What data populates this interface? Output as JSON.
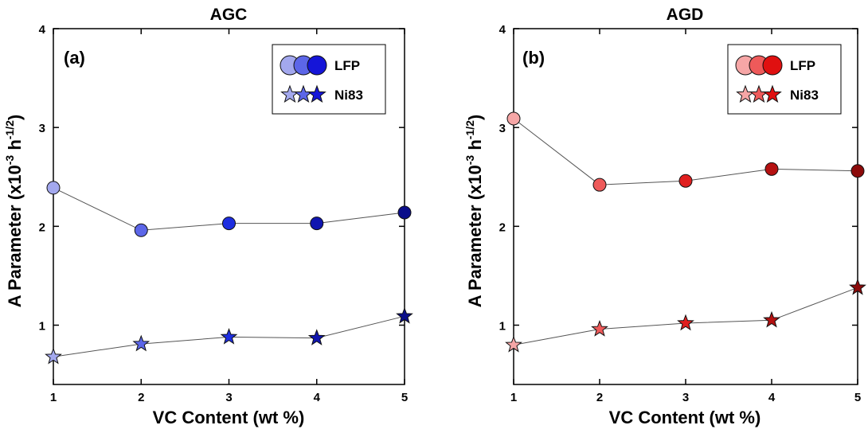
{
  "figure": {
    "ylabel_main": "A Parameter (x10",
    "ylabel_exp1": "-3",
    "ylabel_mid": " h",
    "ylabel_exp2": "-1/2",
    "ylabel_end": ")"
  },
  "chart_data": [
    {
      "type": "line",
      "title": "AGC",
      "panel_label": "(a)",
      "xlabel": "VC Content (wt %)",
      "x": [
        1,
        2,
        3,
        4,
        5
      ],
      "xlim": [
        1,
        5
      ],
      "ylim": [
        0.4,
        4
      ],
      "yticks": [
        1,
        2,
        3,
        4
      ],
      "xticks": [
        1,
        2,
        3,
        4,
        5
      ],
      "grid": false,
      "legend_position": "top-right",
      "series": [
        {
          "name": "LFP",
          "marker": "circle",
          "values": [
            2.39,
            1.96,
            2.03,
            2.03,
            2.14
          ],
          "colors": [
            "#a3a8ee",
            "#5c66e8",
            "#1e2ee0",
            "#1015b0",
            "#0a0d8a"
          ]
        },
        {
          "name": "Ni83",
          "marker": "star",
          "values": [
            0.68,
            0.81,
            0.88,
            0.87,
            1.09
          ],
          "colors": [
            "#a3a8ee",
            "#5c66e8",
            "#1e2ee0",
            "#1015b0",
            "#0a0d8a"
          ]
        }
      ],
      "legend_colors": [
        "#a3a8ee",
        "#5c66e8",
        "#1515d8"
      ]
    },
    {
      "type": "line",
      "title": "AGD",
      "panel_label": "(b)",
      "xlabel": "VC Content (wt %)",
      "x": [
        1,
        2,
        3,
        4,
        5
      ],
      "xlim": [
        1,
        5
      ],
      "ylim": [
        0.4,
        4
      ],
      "yticks": [
        1,
        2,
        3,
        4
      ],
      "xticks": [
        1,
        2,
        3,
        4,
        5
      ],
      "grid": false,
      "legend_position": "top-right",
      "series": [
        {
          "name": "LFP",
          "marker": "circle",
          "values": [
            3.09,
            2.42,
            2.46,
            2.58,
            2.56
          ],
          "colors": [
            "#f6a6a6",
            "#ee5a5a",
            "#e01f1f",
            "#b51111",
            "#8c0a0a"
          ]
        },
        {
          "name": "Ni83",
          "marker": "star",
          "values": [
            0.8,
            0.96,
            1.02,
            1.05,
            1.38
          ],
          "colors": [
            "#f6a6a6",
            "#ee5a5a",
            "#e01f1f",
            "#b51111",
            "#8c0a0a"
          ]
        }
      ],
      "legend_colors": [
        "#f6a6a6",
        "#ee5a5a",
        "#e01010"
      ]
    }
  ]
}
